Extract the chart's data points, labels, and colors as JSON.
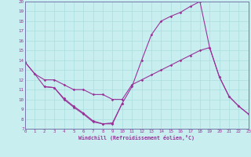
{
  "xlabel": "Windchill (Refroidissement éolien,°C)",
  "bg_color": "#c8eef0",
  "line_color": "#993399",
  "grid_color": "#aadddd",
  "axis_color": "#7777aa",
  "xmin": 0,
  "xmax": 23,
  "ymin": 7,
  "ymax": 20,
  "line1_x": [
    0,
    1,
    2,
    3,
    4,
    5,
    6,
    7,
    8,
    9,
    10,
    11,
    12,
    13,
    14,
    15,
    16,
    17,
    18
  ],
  "line1_y": [
    13.8,
    12.6,
    11.3,
    11.2,
    10.1,
    9.3,
    8.6,
    7.8,
    7.5,
    7.5,
    9.6,
    11.3,
    14.0,
    16.6,
    18.0,
    18.5,
    18.9,
    19.5,
    20.0
  ],
  "line2_x": [
    18,
    19,
    20,
    21,
    22,
    23
  ],
  "line2_y": [
    20.0,
    15.3,
    12.3,
    10.3,
    9.3,
    8.5
  ],
  "line3_x": [
    2,
    3,
    4,
    5,
    6,
    7,
    8,
    9,
    10
  ],
  "line3_y": [
    11.3,
    11.2,
    10.0,
    9.2,
    8.5,
    7.7,
    7.5,
    7.6,
    9.6
  ],
  "line4_x": [
    0,
    1,
    2,
    3,
    4,
    5,
    6,
    7,
    8,
    9,
    10,
    11,
    12,
    13,
    14,
    15,
    16,
    17,
    18,
    19,
    20,
    21,
    22,
    23
  ],
  "line4_y": [
    13.8,
    12.6,
    12.0,
    12.0,
    11.5,
    11.0,
    11.0,
    10.5,
    10.5,
    10.0,
    10.0,
    11.5,
    12.0,
    12.5,
    13.0,
    13.5,
    14.0,
    14.5,
    15.0,
    15.3,
    12.3,
    10.3,
    9.3,
    8.5
  ]
}
